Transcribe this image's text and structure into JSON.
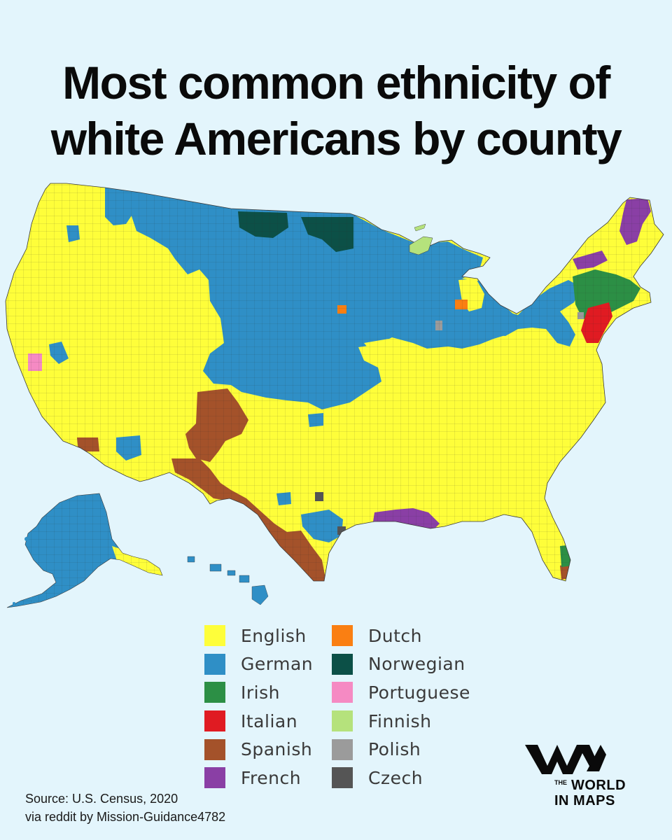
{
  "title": {
    "line1": "Most common ethnicity of",
    "line2": "white Americans by county"
  },
  "legend": {
    "items": [
      {
        "label": "English",
        "color": "#fefe3a"
      },
      {
        "label": "German",
        "color": "#2f8fc6"
      },
      {
        "label": "Irish",
        "color": "#2c8f45"
      },
      {
        "label": "Italian",
        "color": "#e01b22"
      },
      {
        "label": "Spanish",
        "color": "#a4522a"
      },
      {
        "label": "French",
        "color": "#8a3fa5"
      },
      {
        "label": "Dutch",
        "color": "#fa7f12"
      },
      {
        "label": "Norwegian",
        "color": "#0c5047"
      },
      {
        "label": "Portuguese",
        "color": "#f58ac3"
      },
      {
        "label": "Finnish",
        "color": "#b5e27c"
      },
      {
        "label": "Polish",
        "color": "#9b9b9b"
      },
      {
        "label": "Czech",
        "color": "#555555"
      }
    ]
  },
  "source": {
    "line1": "Source: U.S. Census, 2020",
    "line2": "via reddit by Mission-Guidance4782"
  },
  "logo": {
    "the": "THE",
    "line1": "WORLD",
    "line2": "IN MAPS"
  },
  "colors": {
    "background": "#e3f5fc",
    "english": "#fefe3a",
    "german": "#2f8fc6",
    "irish": "#2c8f45",
    "italian": "#e01b22",
    "spanish": "#a4522a",
    "french": "#8a3fa5",
    "dutch": "#fa7f12",
    "norwegian": "#0c5047",
    "portuguese": "#f58ac3",
    "finnish": "#b5e27c",
    "polish": "#9b9b9b",
    "czech": "#555555"
  }
}
